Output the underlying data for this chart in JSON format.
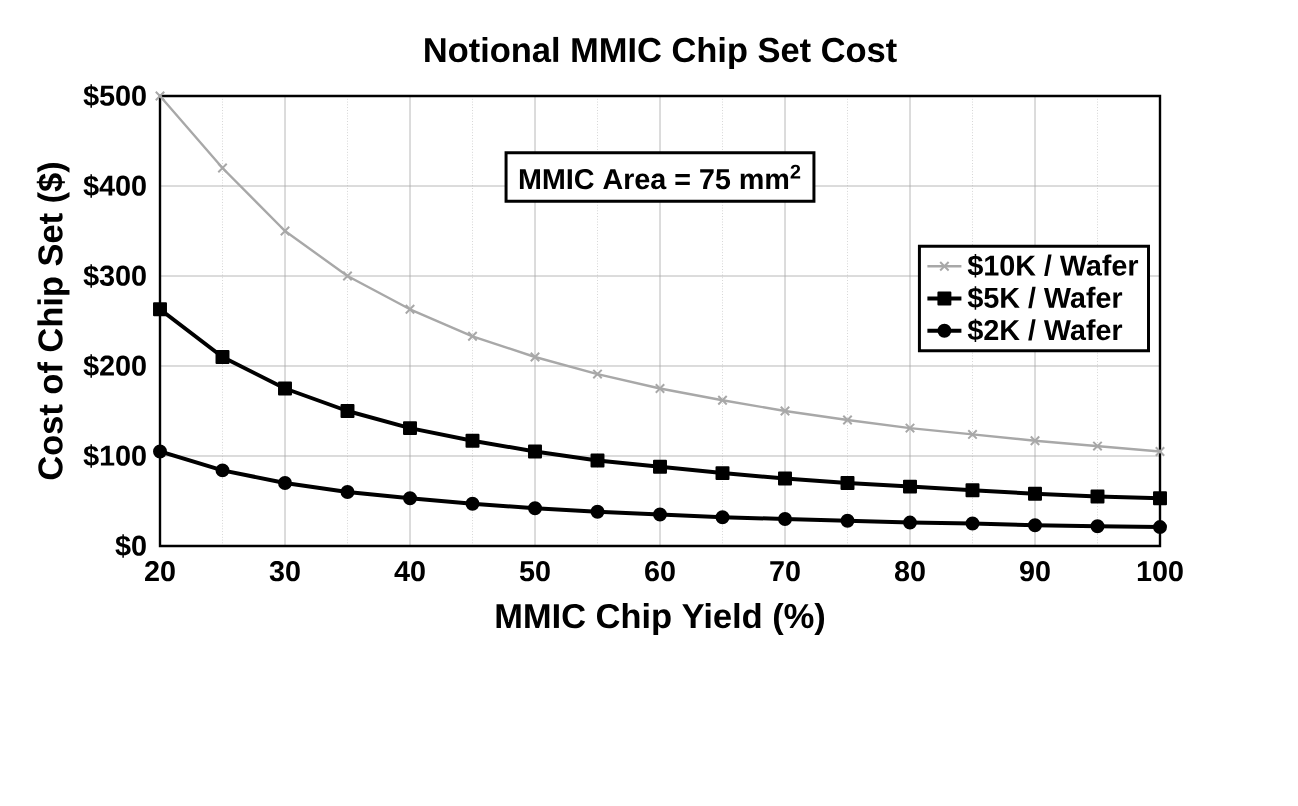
{
  "chart_data": {
    "type": "line",
    "title": "Notional MMIC Chip Set Cost",
    "xlabel": "MMIC Chip Yield (%)",
    "ylabel": "Cost of Chip Set ($)",
    "x": [
      20,
      25,
      30,
      35,
      40,
      45,
      50,
      55,
      60,
      65,
      70,
      75,
      80,
      85,
      90,
      95,
      100
    ],
    "series": [
      {
        "name": "$10K / Wafer",
        "color": "#a8a8a8",
        "marker": "cross",
        "values": [
          500,
          420,
          350,
          300,
          263,
          233,
          210,
          191,
          175,
          162,
          150,
          140,
          131,
          124,
          117,
          111,
          105
        ]
      },
      {
        "name": "$5K / Wafer",
        "color": "#000000",
        "marker": "square",
        "values": [
          263,
          210,
          175,
          150,
          131,
          117,
          105,
          95,
          88,
          81,
          75,
          70,
          66,
          62,
          58,
          55,
          53
        ]
      },
      {
        "name": "$2K / Wafer",
        "color": "#000000",
        "marker": "circle",
        "values": [
          105,
          84,
          70,
          60,
          53,
          47,
          42,
          38,
          35,
          32,
          30,
          28,
          26,
          25,
          23,
          22,
          21
        ]
      }
    ],
    "annotations": [
      "MMIC Area = 75 mm$^{2}$"
    ],
    "xlim": [
      20,
      100
    ],
    "xticks": [
      20,
      30,
      40,
      50,
      60,
      70,
      80,
      90,
      100
    ],
    "ylim": [
      0,
      500
    ],
    "yticks": [
      {
        "value": 0,
        "label": "$0"
      },
      {
        "value": 100,
        "label": "$100"
      },
      {
        "value": 200,
        "label": "$200"
      },
      {
        "value": 300,
        "label": "$300"
      },
      {
        "value": 400,
        "label": "$400"
      },
      {
        "value": 500,
        "label": "$500"
      }
    ],
    "grid": true,
    "legend": "right"
  }
}
